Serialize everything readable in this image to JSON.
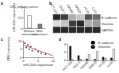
{
  "chart_data": [
    {
      "type": "bar",
      "annotations": [
        "a"
      ],
      "title": "CRC primary cancer",
      "categories": [
        "Without metastasis",
        "With metastasis"
      ],
      "values": [
        0.62,
        0.2
      ],
      "colors": [
        "#ffffff",
        "#7f7f7f"
      ],
      "ylabel": "miR-200c expression",
      "ylim": [
        0,
        1
      ],
      "yticks": [
        0,
        0.5,
        1
      ]
    },
    {
      "type": "heatmap",
      "annotations": [
        "b"
      ],
      "columns": [
        "HCT-116",
        "DLD-1",
        "SW480",
        "SW620",
        "HT29",
        "LoVo"
      ],
      "rows": [
        "E-cadherin",
        "Vimentin",
        "GAPDH"
      ],
      "cells": [
        [
          0.9,
          0.8,
          0.3,
          0.2,
          0.7,
          0.6
        ],
        [
          0.1,
          0.2,
          0.8,
          0.9,
          0.3,
          0.4
        ],
        [
          0.9,
          0.9,
          0.9,
          0.9,
          0.9,
          0.9
        ]
      ],
      "value_range": [
        0,
        1
      ]
    },
    {
      "type": "scatter",
      "annotations": [
        "c"
      ],
      "xlabel": "miR-200c expression",
      "ylabel": "ZEB1 expression",
      "xlim": [
        0,
        10
      ],
      "xticks": [
        0,
        5,
        10
      ],
      "ylim": [
        0,
        10
      ],
      "yticks": [
        0,
        5,
        10
      ],
      "series": [
        {
          "type": "scatter",
          "color": "#222222",
          "x": [
            0.5,
            1,
            1.5,
            2,
            2.5,
            3,
            4,
            5,
            6,
            7.5
          ],
          "values": [
            8.5,
            6,
            7.5,
            5,
            6.5,
            4,
            5,
            3.5,
            2.5,
            2
          ]
        },
        {
          "type": "line",
          "color": "#e03030",
          "x": [
            0,
            10
          ],
          "values": [
            7.5,
            1
          ]
        }
      ]
    },
    {
      "type": "bar",
      "annotations": [
        "d"
      ],
      "categories": [
        "HCT-116",
        "DLD-1",
        "SW480",
        "SW620",
        "HT29",
        "LoVo"
      ],
      "series": [
        {
          "name": "E-cadherin",
          "color": "#111111",
          "values": [
            3.5,
            1.2,
            0.4,
            0.3,
            0.8,
            0.6
          ]
        },
        {
          "name": "Vimentin",
          "color": "#ffffff",
          "values": [
            0.2,
            0.3,
            1.5,
            2.2,
            0.5,
            2.8
          ]
        }
      ],
      "ylim": [
        0,
        4
      ],
      "yticks": [
        0,
        2,
        4
      ],
      "legend": "top-right"
    }
  ]
}
